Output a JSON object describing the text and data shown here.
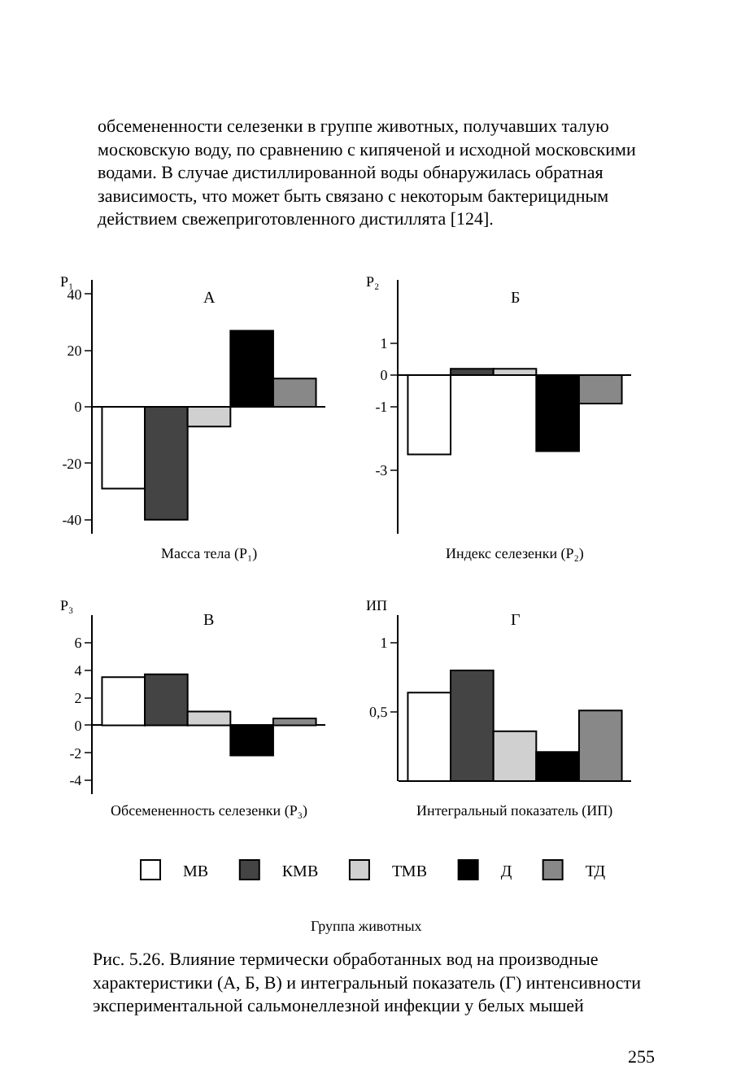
{
  "chart_data": [
    {
      "type": "bar",
      "title": "А",
      "ylabel": "Р₁",
      "xlabel": "Масса тела (Р₁)",
      "categories": [
        null
      ],
      "tick_labels": "y",
      "legend": false,
      "ylim": [
        -45,
        45
      ],
      "yticks": [
        40,
        20,
        0,
        -20,
        -40
      ],
      "annotations": [
        "обсемененности селезенки в группе животных, получавших талую московскую воду, по сравнению с кипяченой и исходной московскими водами. В случае дистиллированной воды обнаружилась обратная зависимость, что может быть связано с некоторым бактерицидным действием свежеприготовленного дистиллята [124]."
      ],
      "series": [
        {
          "color": "#ffffff",
          "values": [
            -29
          ]
        },
        {
          "color": "#444444",
          "values": [
            -40
          ]
        },
        {
          "color": "#d0d0d0",
          "values": [
            -7
          ]
        },
        {
          "color": "#000000",
          "values": [
            27
          ]
        },
        {
          "color": "#888888",
          "values": [
            10
          ]
        }
      ]
    },
    {
      "type": "bar",
      "title": "Б",
      "ylabel": "Р₂",
      "xlabel": "Индекс селезенки (Р₂)",
      "categories": [
        null
      ],
      "tick_labels": "y",
      "legend": false,
      "ylim": [
        -5,
        3
      ],
      "yticks": [
        1,
        0,
        -1,
        -3
      ],
      "series": [
        {
          "color": "#ffffff",
          "values": [
            -2.5
          ]
        },
        {
          "color": "#444444",
          "values": [
            0.2
          ]
        },
        {
          "color": "#d0d0d0",
          "values": [
            0.2
          ]
        },
        {
          "color": "#000000",
          "values": [
            -2.4
          ]
        },
        {
          "color": "#888888",
          "values": [
            -0.9
          ]
        }
      ]
    },
    {
      "type": "bar",
      "title": "В",
      "ylabel": "Р₃",
      "xlabel": "Обсемененность селезенки (Р₃)",
      "categories": [
        null
      ],
      "tick_labels": "y",
      "legend": false,
      "ylim": [
        -5,
        8
      ],
      "yticks": [
        6,
        4,
        2,
        0,
        -2,
        -4
      ],
      "series": [
        {
          "color": "#ffffff",
          "values": [
            3.5
          ]
        },
        {
          "color": "#444444",
          "values": [
            3.7
          ]
        },
        {
          "color": "#d0d0d0",
          "values": [
            1.0
          ]
        },
        {
          "color": "#000000",
          "values": [
            -2.2
          ]
        },
        {
          "color": "#888888",
          "values": [
            0.5
          ]
        }
      ]
    },
    {
      "type": "bar",
      "title": "Г",
      "ylabel": "ИП",
      "xlabel": "Интегральный показатель (ИП)",
      "categories": [
        null
      ],
      "tick_labels": "y",
      "legend": "bottom",
      "ylim": [
        0,
        1.2
      ],
      "yticks": [
        {
          "value": 1,
          "label": "1"
        },
        {
          "value": 0.5,
          "label": "0,5"
        }
      ],
      "annotations": [
        "Группа животных",
        "Рис. 5.26. Влияние термически обработанных вод на производные характеристики (А, Б, В) и интегральный показатель (Г) интенсивности экспериментальной сальмонеллезной инфекции у белых мышей",
        "255"
      ],
      "series": [
        {
          "name": "МВ",
          "color": "#ffffff",
          "values": [
            0.64
          ]
        },
        {
          "name": "КМВ",
          "color": "#444444",
          "values": [
            0.8
          ]
        },
        {
          "name": "ТМВ",
          "color": "#d0d0d0",
          "values": [
            0.36
          ]
        },
        {
          "name": "Д",
          "color": "#000000",
          "values": [
            0.21
          ]
        },
        {
          "name": "ТД",
          "color": "#888888",
          "values": [
            0.51
          ]
        }
      ]
    }
  ]
}
